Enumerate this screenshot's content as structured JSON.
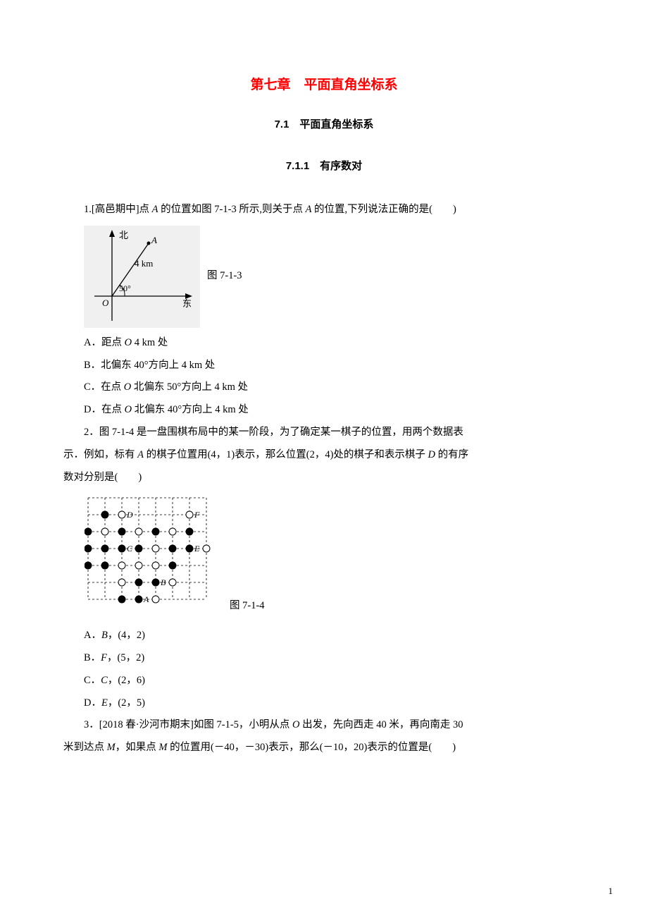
{
  "chapter_title": "第七章　平面直角坐标系",
  "section_title": "7.1　平面直角坐标系",
  "subsection_title": "7.1.1　有序数对",
  "q1": {
    "stem_pre": "1.[高邑期中]点 ",
    "stem_A": "A",
    "stem_mid1": " 的位置如图 7-1-3 所示,则关于点 ",
    "stem_A2": "A",
    "stem_mid2": " 的位置,下列说法正确的是(　　)",
    "caption": "图 7-1-3",
    "optA_pre": "A．距点 ",
    "optA_O": "O",
    "optA_post": " 4 km 处",
    "optB": "B．北偏东 40°方向上 4 km 处",
    "optC_pre": "C．在点 ",
    "optC_O": "O",
    "optC_post": " 北偏东 50°方向上 4 km 处",
    "optD_pre": "D．在点 ",
    "optD_O": "O",
    "optD_post": " 北偏东 40°方向上 4 km 处",
    "fig": {
      "north": "北",
      "east": "东",
      "O": "O",
      "A": "A",
      "dist": "4 km",
      "angle": "50°"
    }
  },
  "q2": {
    "stem_p1": "2．图 7-1-4 是一盘围棋布局中的某一阶段，为了确定某一棋子的位置，用两个数据表",
    "stem_p2_pre": "示．例如，标有 ",
    "stem_p2_A": "A",
    "stem_p2_mid": " 的棋子位置用(4，1)表示，那么位置(2，4)处的棋子和表示棋子 ",
    "stem_p2_D": "D",
    "stem_p2_post": " 的有序",
    "stem_p3": "数对分别是(　　)",
    "caption": "图 7-1-4",
    "optA_pre": "A．",
    "optA_B": "B",
    "optA_post": "，(4，2)",
    "optB_pre": "B．",
    "optB_F": "F",
    "optB_post": "，(5，2)",
    "optC_pre": "C．",
    "optC_C": "C",
    "optC_post": "，(2，6)",
    "optD_pre": "D．",
    "optD_E": "E",
    "optD_post": "，(2，5)",
    "fig": {
      "labels": {
        "A": "A",
        "B": "B",
        "C": "C",
        "D": "D",
        "E": "E",
        "F": "F"
      },
      "cols": 8,
      "rows": 7,
      "cell": 24,
      "r": 5,
      "white": [
        [
          3,
          6
        ],
        [
          7,
          6
        ],
        [
          2,
          5
        ],
        [
          4,
          5
        ],
        [
          6,
          5
        ],
        [
          5,
          4
        ],
        [
          8,
          4
        ],
        [
          3,
          3
        ],
        [
          4,
          3
        ],
        [
          5,
          3
        ],
        [
          3,
          2
        ],
        [
          6,
          2
        ],
        [
          5,
          1
        ]
      ],
      "black": [
        [
          2,
          6
        ],
        [
          1,
          5
        ],
        [
          3,
          5
        ],
        [
          5,
          5
        ],
        [
          7,
          5
        ],
        [
          1,
          4
        ],
        [
          2,
          4
        ],
        [
          3,
          4
        ],
        [
          4,
          4
        ],
        [
          6,
          4
        ],
        [
          7,
          4
        ],
        [
          1,
          3
        ],
        [
          2,
          3
        ],
        [
          6,
          3
        ],
        [
          4,
          2
        ],
        [
          5,
          2
        ],
        [
          3,
          1
        ],
        [
          4,
          1
        ]
      ],
      "label_pos": {
        "D": [
          3,
          6
        ],
        "F": [
          7,
          6
        ],
        "C": [
          3,
          4
        ],
        "E": [
          7,
          4
        ],
        "B": [
          5,
          2
        ],
        "A": [
          4,
          1
        ]
      }
    }
  },
  "q3": {
    "stem_p1_pre": "3．[2018 春·沙河市期末]如图 7-1-5，小明从点 ",
    "stem_p1_O": "O",
    "stem_p1_post": " 出发，先向西走 40 米，再向南走 30",
    "stem_p2_pre": "米到达点 ",
    "stem_p2_M": "M",
    "stem_p2_mid": "，如果点 ",
    "stem_p2_M2": "M",
    "stem_p2_post": " 的位置用(－40，－30)表示，那么(－10，20)表示的位置是(　　)"
  },
  "page_number": "1"
}
